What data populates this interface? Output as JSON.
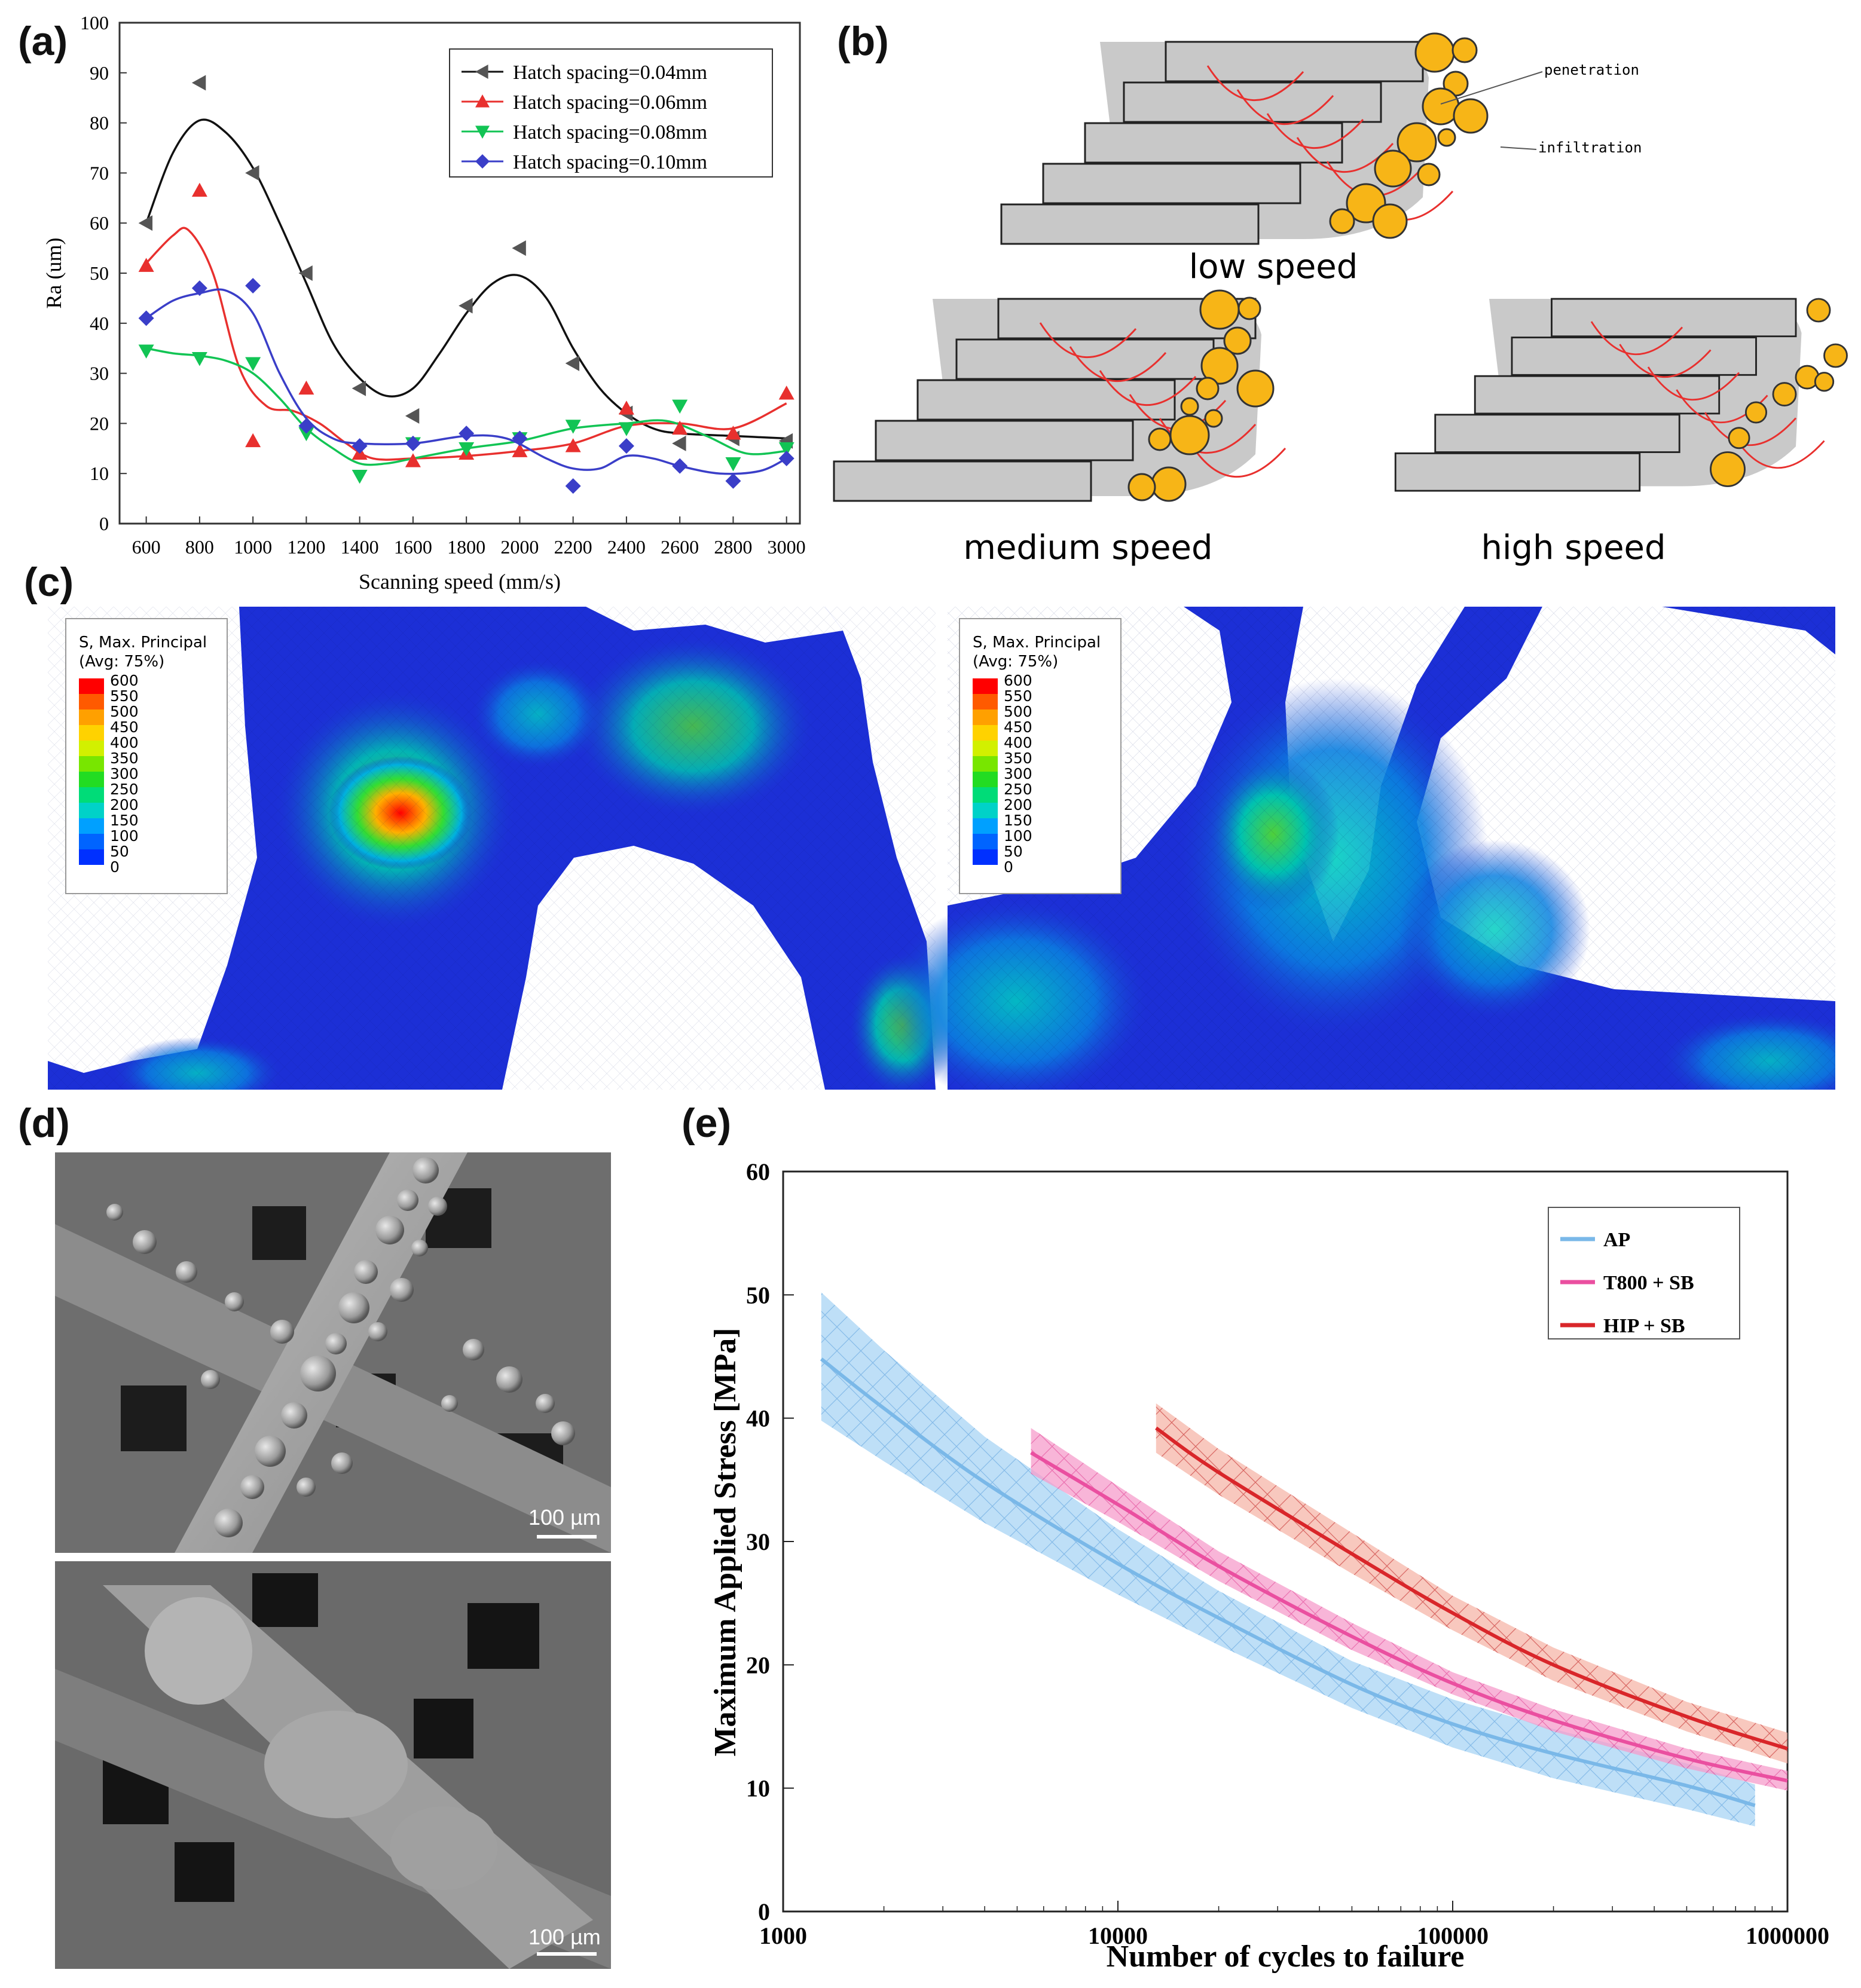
{
  "panel_labels": {
    "a": "(a)",
    "b": "(b)",
    "c": "(c)",
    "d": "(d)",
    "e": "(e)"
  },
  "chart_data": [
    {
      "id": "a",
      "type": "scatter",
      "xlabel": "Scanning speed (mm/s)",
      "ylabel": "Ra (um)",
      "xlim": [
        500,
        3050
      ],
      "ylim": [
        0,
        100
      ],
      "xticks": [
        600,
        800,
        1000,
        1200,
        1400,
        1600,
        1800,
        2000,
        2200,
        2400,
        2600,
        2800,
        3000
      ],
      "yticks": [
        0,
        10,
        20,
        30,
        40,
        50,
        60,
        70,
        80,
        90,
        100
      ],
      "legend_position": "top-right",
      "x": [
        600,
        800,
        1000,
        1200,
        1400,
        1600,
        1800,
        2000,
        2200,
        2400,
        2600,
        2800,
        3000
      ],
      "series": [
        {
          "name": "Hatch spacing=0.04mm",
          "color": "#555555",
          "marker": "triangle-left",
          "values": [
            60,
            88,
            70,
            50,
            27,
            21.5,
            43.5,
            55,
            32,
            22,
            16,
            17,
            16.5
          ],
          "fit": [
            [
              600,
              60
            ],
            [
              700,
              74
            ],
            [
              800,
              80.5
            ],
            [
              900,
              78
            ],
            [
              1000,
              71
            ],
            [
              1100,
              60
            ],
            [
              1200,
              48
            ],
            [
              1300,
              36
            ],
            [
              1400,
              29
            ],
            [
              1500,
              25.5
            ],
            [
              1600,
              27
            ],
            [
              1700,
              34
            ],
            [
              1800,
              42
            ],
            [
              1900,
              48
            ],
            [
              2000,
              49.5
            ],
            [
              2100,
              45
            ],
            [
              2200,
              35
            ],
            [
              2300,
              27
            ],
            [
              2400,
              22
            ],
            [
              2500,
              19
            ],
            [
              2600,
              18
            ],
            [
              2800,
              17.5
            ],
            [
              3000,
              17
            ]
          ]
        },
        {
          "name": "Hatch spacing=0.06mm",
          "color": "#e8302e",
          "marker": "triangle-up",
          "values": [
            51.5,
            66.5,
            16.5,
            27,
            14,
            12.5,
            14,
            14.5,
            15.5,
            23,
            19,
            18,
            26
          ],
          "fit": [
            [
              600,
              52
            ],
            [
              700,
              57.5
            ],
            [
              760,
              58.5
            ],
            [
              850,
              50
            ],
            [
              950,
              31
            ],
            [
              1050,
              23.5
            ],
            [
              1150,
              22.5
            ],
            [
              1250,
              20
            ],
            [
              1350,
              16
            ],
            [
              1450,
              13
            ],
            [
              1600,
              13
            ],
            [
              1800,
              13.5
            ],
            [
              2000,
              14.5
            ],
            [
              2200,
              16
            ],
            [
              2400,
              19.5
            ],
            [
              2600,
              20
            ],
            [
              2800,
              19
            ],
            [
              3000,
              24
            ]
          ]
        },
        {
          "name": "Hatch spacing=0.08mm",
          "color": "#12c454",
          "marker": "triangle-down",
          "values": [
            34.5,
            33,
            32,
            18,
            9.5,
            16,
            15,
            17,
            19.5,
            19,
            23.5,
            12,
            15
          ],
          "fit": [
            [
              600,
              35
            ],
            [
              700,
              34
            ],
            [
              800,
              33.5
            ],
            [
              900,
              32.5
            ],
            [
              1000,
              30
            ],
            [
              1100,
              25
            ],
            [
              1200,
              19
            ],
            [
              1300,
              15
            ],
            [
              1400,
              12
            ],
            [
              1500,
              12
            ],
            [
              1600,
              13
            ],
            [
              1800,
              15
            ],
            [
              2000,
              16.5
            ],
            [
              2200,
              19
            ],
            [
              2400,
              20
            ],
            [
              2550,
              20.5
            ],
            [
              2700,
              17.5
            ],
            [
              2850,
              14
            ],
            [
              3000,
              14.5
            ]
          ]
        },
        {
          "name": "Hatch spacing=0.10mm",
          "color": "#3a3ec8",
          "marker": "diamond",
          "values": [
            41,
            47,
            47.5,
            19.5,
            15.5,
            16,
            18,
            17,
            7.5,
            15.5,
            11.5,
            8.5,
            13
          ],
          "fit": [
            [
              600,
              41
            ],
            [
              700,
              44.5
            ],
            [
              800,
              46
            ],
            [
              900,
              46.5
            ],
            [
              1000,
              42
            ],
            [
              1100,
              30
            ],
            [
              1200,
              21
            ],
            [
              1300,
              17
            ],
            [
              1400,
              16
            ],
            [
              1600,
              16
            ],
            [
              1800,
              17.5
            ],
            [
              1950,
              17
            ],
            [
              2100,
              13
            ],
            [
              2200,
              11
            ],
            [
              2300,
              11
            ],
            [
              2400,
              13.5
            ],
            [
              2500,
              13
            ],
            [
              2600,
              11.5
            ],
            [
              2750,
              10
            ],
            [
              2900,
              10.5
            ],
            [
              3000,
              13
            ]
          ]
        }
      ]
    },
    {
      "id": "e",
      "type": "line",
      "xlabel": "Number of cycles to failure",
      "ylabel": "Maximum Applied Stress [MPa]",
      "xscale": "log",
      "xlim": [
        1000,
        1000000
      ],
      "ylim": [
        0,
        60
      ],
      "xticks": [
        1000,
        10000,
        100000,
        1000000
      ],
      "xtick_labels": [
        "1000",
        "10000",
        "100000",
        "1000000"
      ],
      "yticks": [
        0,
        10,
        20,
        30,
        40,
        50,
        60
      ],
      "legend_position": "top-right",
      "series": [
        {
          "name": "AP",
          "color": "#7ab8e8",
          "x": [
            1300,
            2000,
            4000,
            10000,
            20000,
            50000,
            100000,
            200000,
            500000,
            800000
          ],
          "values": [
            44.8,
            40.8,
            34.8,
            28.2,
            23.8,
            18.4,
            15.2,
            12.8,
            10.2,
            8.6
          ],
          "lower": [
            39.8,
            36.5,
            31.5,
            25.7,
            21.6,
            16.5,
            13.3,
            10.8,
            8.3,
            6.9
          ],
          "upper": [
            50.2,
            45.5,
            38.5,
            31.0,
            26.0,
            20.3,
            17.2,
            14.8,
            12.0,
            10.3
          ]
        },
        {
          "name": "T800 + SB",
          "color": "#ea4fa0",
          "x": [
            5500,
            10000,
            20000,
            50000,
            100000,
            200000,
            500000,
            1000000
          ],
          "values": [
            37.2,
            33.0,
            28.0,
            22.3,
            18.5,
            15.5,
            12.4,
            10.6
          ],
          "lower": [
            35.5,
            31.6,
            26.8,
            21.2,
            17.6,
            14.6,
            11.6,
            9.8
          ],
          "upper": [
            39.2,
            34.5,
            29.2,
            23.4,
            19.4,
            16.4,
            13.2,
            11.4
          ]
        },
        {
          "name": "HIP + SB",
          "color": "#d9262a",
          "x": [
            13000,
            20000,
            50000,
            100000,
            200000,
            500000,
            1000000
          ],
          "values": [
            39.2,
            35.6,
            29.0,
            24.2,
            20.0,
            15.8,
            13.2
          ],
          "lower": [
            37.2,
            33.8,
            27.4,
            22.8,
            18.7,
            14.6,
            12.0
          ],
          "upper": [
            41.2,
            37.5,
            30.7,
            25.6,
            21.4,
            17.0,
            14.5
          ]
        }
      ]
    }
  ],
  "panel_b": {
    "low_speed": "low speed",
    "medium_speed": "medium speed",
    "high_speed": "high speed",
    "penetration": "penetration",
    "infiltration": "infiltration",
    "track_color": "#c8c8c8",
    "particle_color": "#f7b517",
    "melt_color": "#e8302e"
  },
  "panel_c": {
    "legend_title_1": "S, Max. Principal",
    "legend_title_2": "(Avg: 75%)",
    "levels": [
      "600",
      "550",
      "500",
      "450",
      "400",
      "350",
      "300",
      "250",
      "200",
      "150",
      "100",
      "50",
      "0"
    ],
    "level_colors": [
      "#ff0000",
      "#ff5a00",
      "#ffa000",
      "#ffd200",
      "#d2f000",
      "#78e600",
      "#22dc22",
      "#00dc78",
      "#00d2c8",
      "#00a0ff",
      "#0064ff",
      "#0030ff",
      "#0000d2"
    ]
  },
  "panel_d": {
    "scale_label_top": "100 µm",
    "scale_label_bottom": "100 µm"
  }
}
